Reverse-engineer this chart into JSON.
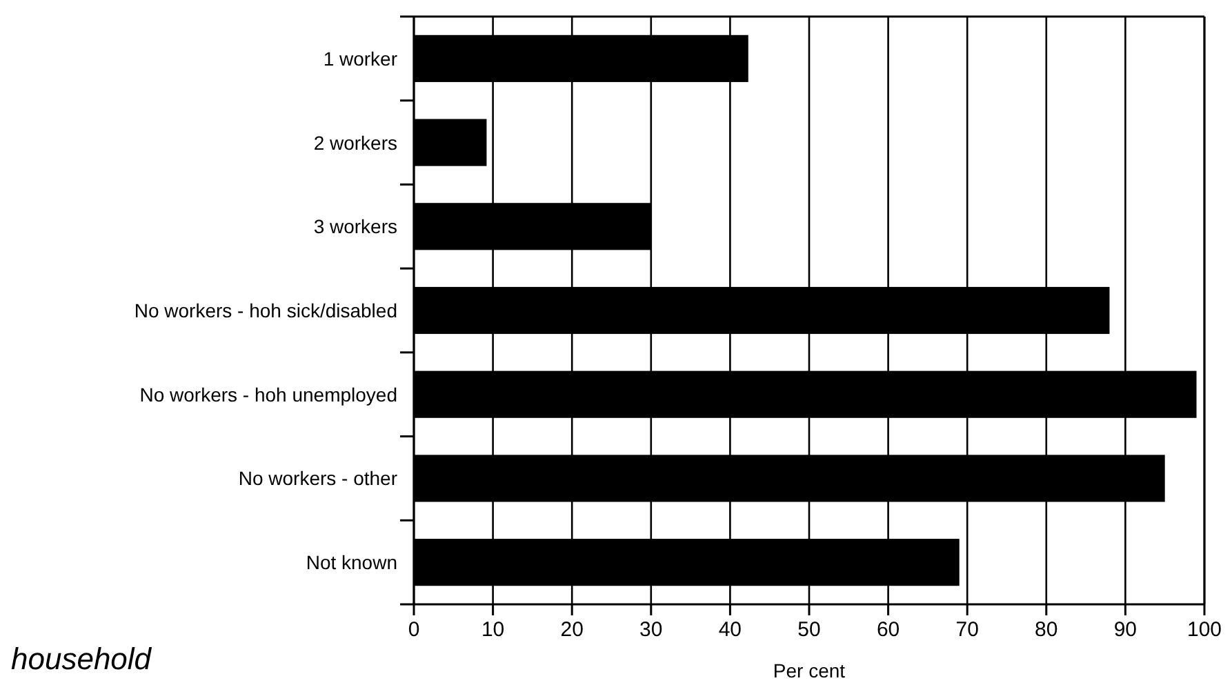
{
  "chart_data": {
    "type": "bar",
    "orientation": "horizontal",
    "xlabel": "Per cent",
    "categories": [
      "1 worker",
      "2 workers",
      "3 workers",
      "No workers - hoh sick/disabled",
      "No workers - hoh unemployed",
      "No workers - other",
      "Not known"
    ],
    "values": [
      42.3,
      9.2,
      30,
      88,
      99,
      95,
      69
    ],
    "color": "#000000",
    "xlim": [
      0,
      100
    ],
    "xticks": [
      0,
      10,
      20,
      30,
      40,
      50,
      60,
      70,
      80,
      90,
      100
    ],
    "grid": "x",
    "annotations": [
      "household"
    ]
  }
}
